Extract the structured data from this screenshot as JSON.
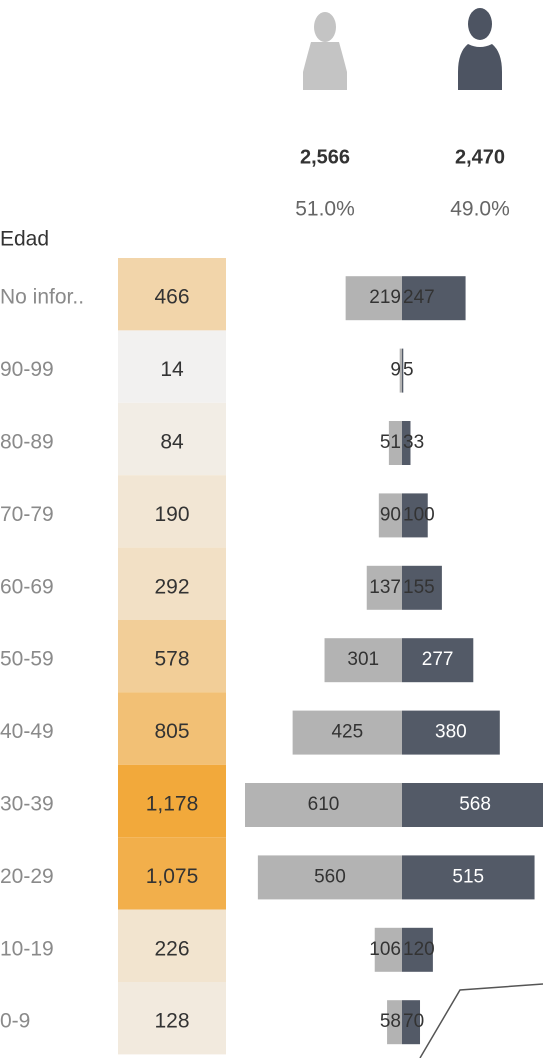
{
  "chart_data": {
    "type": "pyramid",
    "y_label": "Edad",
    "categories": [
      "No infor..",
      "90-99",
      "80-89",
      "70-79",
      "60-69",
      "50-59",
      "40-49",
      "30-39",
      "20-29",
      "10-19",
      "0-9"
    ],
    "totals": {
      "values": [
        466,
        14,
        84,
        190,
        292,
        578,
        805,
        1178,
        1075,
        226,
        128
      ],
      "value_labels": [
        "466",
        "14",
        "84",
        "190",
        "292",
        "578",
        "805",
        "1,178",
        "1,075",
        "226",
        "128"
      ],
      "color_range": [
        "#f2f2f2",
        "#f2a93b"
      ]
    },
    "series": [
      {
        "color": "#b3b3b3",
        "total": 2566,
        "total_label": "2,566",
        "share": 51.0,
        "share_label": "51.0%",
        "values": [
          219,
          9,
          51,
          90,
          137,
          301,
          425,
          610,
          560,
          106,
          58
        ]
      },
      {
        "color": "#535a67",
        "total": 2470,
        "total_label": "2,470",
        "share": 49.0,
        "share_label": "49.0%",
        "values": [
          247,
          5,
          33,
          100,
          155,
          277,
          380,
          568,
          515,
          120,
          70
        ]
      }
    ]
  }
}
